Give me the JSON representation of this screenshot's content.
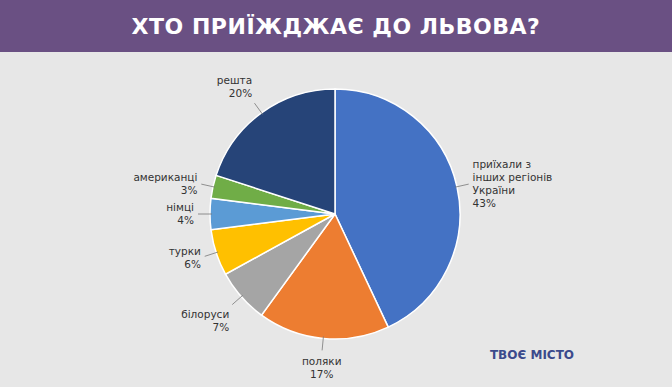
{
  "chart_data": {
    "type": "pie",
    "title": "ХТО ПРИЇЖДЖАЄ ДО ЛЬВОВА?",
    "categories": [
      "приїхали з інших регіонів України",
      "поляки",
      "білоруси",
      "турки",
      "німці",
      "американці",
      "решта"
    ],
    "values": [
      43,
      17,
      7,
      6,
      4,
      3,
      20
    ],
    "value_labels": [
      "43%",
      "17%",
      "7%",
      "6%",
      "4%",
      "3%",
      "20%"
    ],
    "colors": [
      "#4472c4",
      "#ed7d31",
      "#a5a5a5",
      "#ffc000",
      "#5b9bd5",
      "#70ad47",
      "#264478"
    ],
    "data_labels": true,
    "annotations": [
      "ТВОЄ МІСТО"
    ]
  }
}
